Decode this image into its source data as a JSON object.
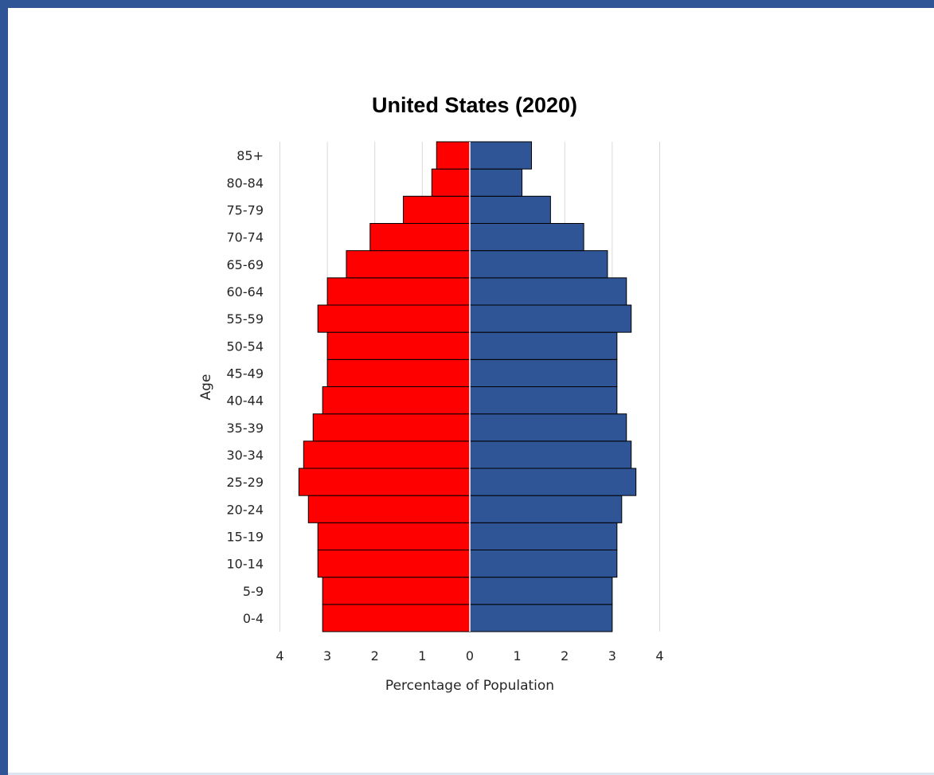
{
  "chart_data": {
    "type": "bar",
    "orientation": "horizontal",
    "title": "United States (2020)",
    "xlabel": "Percentage of Population",
    "ylabel": "Age",
    "xlim": [
      -4,
      4
    ],
    "x_ticks": [
      -4,
      -3,
      -2,
      -1,
      0,
      1,
      2,
      3,
      4
    ],
    "x_tick_labels": [
      "4",
      "3",
      "2",
      "1",
      "0",
      "1",
      "2",
      "3",
      "4"
    ],
    "grid": "vertical",
    "legend": "none",
    "categories": [
      "0-4",
      "5-9",
      "10-14",
      "15-19",
      "20-24",
      "25-29",
      "30-34",
      "35-39",
      "40-44",
      "45-49",
      "50-54",
      "55-59",
      "60-64",
      "65-69",
      "70-74",
      "75-79",
      "80-84",
      "85+"
    ],
    "series": [
      {
        "color": "#ff0000",
        "side": "left",
        "values": [
          3.1,
          3.1,
          3.2,
          3.2,
          3.4,
          3.6,
          3.5,
          3.3,
          3.1,
          3.0,
          3.0,
          3.2,
          3.0,
          2.6,
          2.1,
          1.4,
          0.8,
          0.7
        ]
      },
      {
        "color": "#2f5597",
        "side": "right",
        "values": [
          3.0,
          3.0,
          3.1,
          3.1,
          3.2,
          3.5,
          3.4,
          3.3,
          3.1,
          3.1,
          3.1,
          3.4,
          3.3,
          2.9,
          2.4,
          1.7,
          1.1,
          1.3
        ]
      }
    ]
  }
}
